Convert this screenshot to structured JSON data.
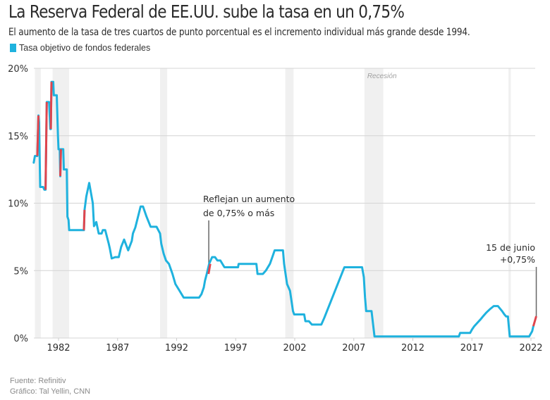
{
  "header": {
    "title": "La Reserva Federal de EE.UU. sube la tasa en un 0,75%",
    "subtitle": "El aumento de la tasa de tres cuartos de punto porcentual es el incremento individual más grande desde 1994."
  },
  "legend": {
    "label": "Tasa objetivo de fondos federales",
    "color": "#1fb2de"
  },
  "footer": {
    "source": "Fuente: Refinitiv",
    "credit": "Gráfico: Tal Yellin, CNN"
  },
  "chart_data": {
    "type": "line",
    "title": "La Reserva Federal de EE.UU. sube la tasa en un 0,75%",
    "xlabel": "",
    "ylabel": "",
    "xlim": [
      1979.9,
      2022.5
    ],
    "ylim": [
      0,
      20
    ],
    "grid": true,
    "legend_position": "top-left",
    "x_ticks": [
      1982,
      1987,
      1992,
      1997,
      2002,
      2007,
      2012,
      2017,
      2022
    ],
    "x_tick_labels": [
      "1982",
      "1987",
      "1992",
      "1997",
      "2002",
      "2007",
      "2012",
      "2017",
      "2022"
    ],
    "y_ticks": [
      0,
      5,
      10,
      15,
      20
    ],
    "y_tick_labels": [
      "0%",
      "5%",
      "10%",
      "15%",
      "20%"
    ],
    "colors": {
      "line": "#1fb2de",
      "hike": "#e0454d",
      "recession": "#f0f0f0",
      "grid": "#d4d4d4",
      "annotation_line": "#666666"
    },
    "recessions": [
      {
        "start": 1980.0,
        "end": 1980.5
      },
      {
        "start": 1981.5,
        "end": 1982.9
      },
      {
        "start": 1990.6,
        "end": 1991.2
      },
      {
        "start": 2001.2,
        "end": 2001.9
      },
      {
        "start": 2007.9,
        "end": 2009.5
      },
      {
        "start": 2020.1,
        "end": 2020.3
      }
    ],
    "recession_label": "Recesión",
    "series": [
      {
        "name": "Tasa objetivo de fondos federales",
        "points": [
          [
            1979.9,
            13.0
          ],
          [
            1980.0,
            13.5
          ],
          [
            1980.2,
            13.5
          ],
          [
            1980.3,
            16.5
          ],
          [
            1980.35,
            16.0
          ],
          [
            1980.45,
            11.2
          ],
          [
            1980.7,
            11.2
          ],
          [
            1980.8,
            11.0
          ],
          [
            1980.9,
            11.0
          ],
          [
            1981.0,
            17.5
          ],
          [
            1981.2,
            17.5
          ],
          [
            1981.3,
            15.5
          ],
          [
            1981.35,
            15.5
          ],
          [
            1981.4,
            19.0
          ],
          [
            1981.55,
            19.0
          ],
          [
            1981.6,
            18.0
          ],
          [
            1981.85,
            18.0
          ],
          [
            1981.95,
            15.0
          ],
          [
            1982.0,
            14.0
          ],
          [
            1982.1,
            14.0
          ],
          [
            1982.15,
            12.0
          ],
          [
            1982.2,
            14.0
          ],
          [
            1982.4,
            14.0
          ],
          [
            1982.45,
            12.5
          ],
          [
            1982.7,
            12.5
          ],
          [
            1982.75,
            9.0
          ],
          [
            1982.85,
            8.75
          ],
          [
            1982.9,
            8.0
          ],
          [
            1984.15,
            8.0
          ],
          [
            1984.2,
            9.5
          ],
          [
            1984.35,
            10.5
          ],
          [
            1984.6,
            11.5
          ],
          [
            1984.9,
            10.0
          ],
          [
            1985.0,
            8.3
          ],
          [
            1985.2,
            8.6
          ],
          [
            1985.4,
            7.75
          ],
          [
            1985.65,
            7.75
          ],
          [
            1985.75,
            8.0
          ],
          [
            1985.95,
            8.0
          ],
          [
            1986.25,
            7.0
          ],
          [
            1986.35,
            6.6
          ],
          [
            1986.5,
            5.9
          ],
          [
            1986.8,
            6.0
          ],
          [
            1987.1,
            6.0
          ],
          [
            1987.3,
            6.75
          ],
          [
            1987.55,
            7.3
          ],
          [
            1987.9,
            6.5
          ],
          [
            1988.2,
            7.2
          ],
          [
            1988.3,
            7.75
          ],
          [
            1988.5,
            8.2
          ],
          [
            1988.95,
            9.75
          ],
          [
            1989.15,
            9.75
          ],
          [
            1989.45,
            9.0
          ],
          [
            1989.8,
            8.25
          ],
          [
            1990.3,
            8.25
          ],
          [
            1990.6,
            7.75
          ],
          [
            1990.7,
            7.0
          ],
          [
            1990.9,
            6.25
          ],
          [
            1991.1,
            5.75
          ],
          [
            1991.35,
            5.5
          ],
          [
            1991.65,
            4.75
          ],
          [
            1991.9,
            4.0
          ],
          [
            1992.25,
            3.5
          ],
          [
            1992.6,
            3.0
          ],
          [
            1993.9,
            3.0
          ],
          [
            1994.1,
            3.25
          ],
          [
            1994.3,
            3.75
          ],
          [
            1994.4,
            4.25
          ],
          [
            1994.55,
            4.75
          ],
          [
            1994.75,
            5.5
          ],
          [
            1995.0,
            6.0
          ],
          [
            1995.25,
            6.0
          ],
          [
            1995.45,
            5.75
          ],
          [
            1995.7,
            5.75
          ],
          [
            1996.05,
            5.25
          ],
          [
            1997.2,
            5.25
          ],
          [
            1997.25,
            5.5
          ],
          [
            1998.75,
            5.5
          ],
          [
            1998.85,
            4.75
          ],
          [
            1999.3,
            4.75
          ],
          [
            1999.55,
            5.0
          ],
          [
            1999.9,
            5.5
          ],
          [
            2000.1,
            6.0
          ],
          [
            2000.3,
            6.5
          ],
          [
            2001.0,
            6.5
          ],
          [
            2001.1,
            5.5
          ],
          [
            2001.35,
            4.0
          ],
          [
            2001.6,
            3.5
          ],
          [
            2001.85,
            2.0
          ],
          [
            2001.95,
            1.75
          ],
          [
            2002.8,
            1.75
          ],
          [
            2002.9,
            1.25
          ],
          [
            2003.2,
            1.25
          ],
          [
            2003.45,
            1.0
          ],
          [
            2004.25,
            1.0
          ],
          [
            2004.5,
            1.5
          ],
          [
            2006.2,
            5.25
          ],
          [
            2007.7,
            5.25
          ],
          [
            2007.85,
            4.5
          ],
          [
            2007.95,
            3.0
          ],
          [
            2008.05,
            2.0
          ],
          [
            2008.5,
            2.0
          ],
          [
            2008.75,
            0.12
          ],
          [
            2015.9,
            0.12
          ],
          [
            2016.0,
            0.375
          ],
          [
            2016.85,
            0.375
          ],
          [
            2017.0,
            0.625
          ],
          [
            2017.2,
            0.875
          ],
          [
            2017.45,
            1.12
          ],
          [
            2017.75,
            1.4
          ],
          [
            2017.95,
            1.62
          ],
          [
            2018.2,
            1.87
          ],
          [
            2018.5,
            2.12
          ],
          [
            2018.85,
            2.37
          ],
          [
            2019.2,
            2.37
          ],
          [
            2019.55,
            2.0
          ],
          [
            2019.75,
            1.75
          ],
          [
            2019.9,
            1.6
          ],
          [
            2020.05,
            1.6
          ],
          [
            2020.2,
            0.12
          ],
          [
            2021.85,
            0.12
          ],
          [
            2022.1,
            0.5
          ],
          [
            2022.2,
            0.875
          ]
        ]
      },
      {
        "name": "Aumentos de 0,75% o más",
        "segments": [
          [
            [
              1980.2,
              13.5
            ],
            [
              1980.3,
              16.5
            ]
          ],
          [
            [
              1980.9,
              11.0
            ],
            [
              1981.0,
              17.5
            ]
          ],
          [
            [
              1981.35,
              15.5
            ],
            [
              1981.4,
              19.0
            ]
          ],
          [
            [
              1982.15,
              12.0
            ],
            [
              1982.2,
              14.0
            ]
          ],
          [
            [
              1984.15,
              8.0
            ],
            [
              1984.2,
              9.5
            ]
          ],
          [
            [
              1994.7,
              4.75
            ],
            [
              1994.85,
              5.5
            ]
          ],
          [
            [
              2022.2,
              0.875
            ],
            [
              2022.45,
              1.62
            ]
          ]
        ]
      }
    ],
    "annotations": [
      {
        "text_lines": [
          "Reflejan un aumento",
          "de 0,75% o más"
        ],
        "x": 1994.72,
        "y": 5.2,
        "align": "left"
      },
      {
        "text_lines": [
          "15 de junio",
          "+0,75%"
        ],
        "x": 2022.45,
        "y": 1.62,
        "align": "right"
      }
    ]
  }
}
